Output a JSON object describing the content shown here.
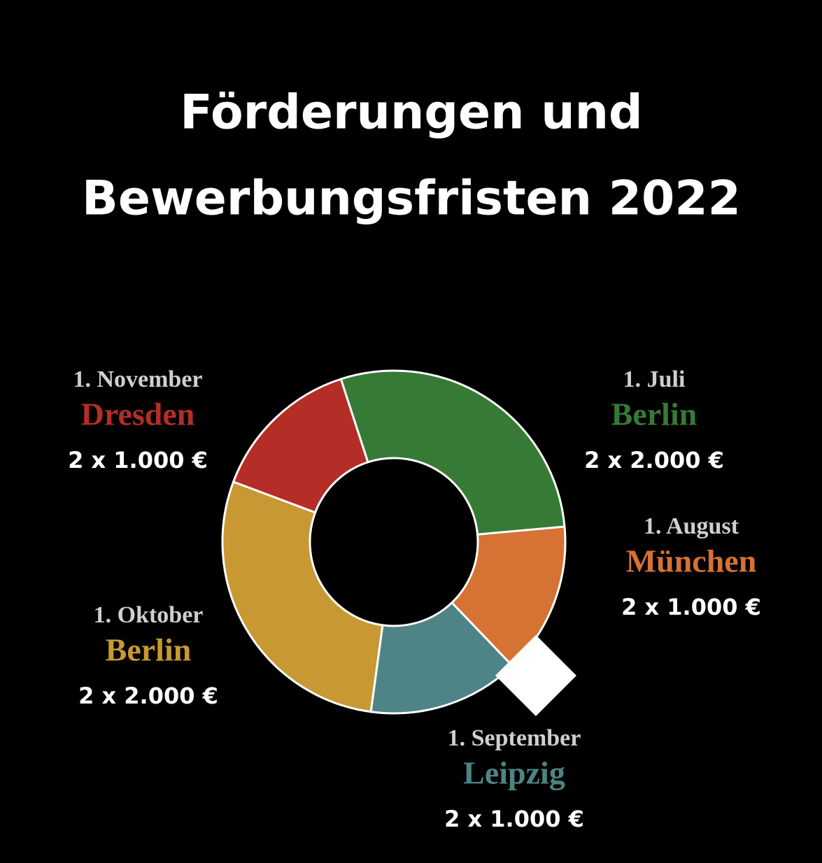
{
  "chart_data": {
    "type": "pie",
    "donut": true,
    "title": [
      "Förderungen und",
      "Bewerbungsfristen 2022"
    ],
    "categories": [
      "Berlin",
      "München",
      "Leipzig",
      "Berlin",
      "Dresden"
    ],
    "dates": [
      "1. Juli",
      "1. August",
      "1. September",
      "1. Oktober",
      "1. November"
    ],
    "values": [
      4000,
      2000,
      2000,
      4000,
      2000
    ],
    "value_labels": [
      "2 x 2.000 €",
      "2 x 1.000 €",
      "2 x 1.000 €",
      "2 x 2.000 €",
      "2 x 1.000 €"
    ],
    "colors": [
      "#367a35",
      "#d57234",
      "#4e8486",
      "#c89833",
      "#b52d27"
    ]
  }
}
